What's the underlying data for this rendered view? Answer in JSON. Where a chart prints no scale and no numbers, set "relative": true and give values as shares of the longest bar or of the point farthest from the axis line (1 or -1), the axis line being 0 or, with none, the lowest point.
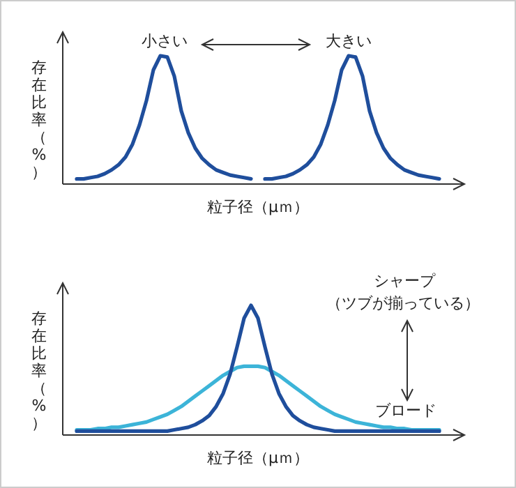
{
  "chart_data": [
    {
      "type": "line",
      "relative": true,
      "xlabel": "粒子径（μｍ）",
      "ylabel": "存在比率（%）",
      "annotations": [
        "小さい",
        "大きい"
      ],
      "categories": [
        null,
        null,
        null,
        null,
        null,
        null,
        null,
        null,
        null,
        null,
        null,
        null,
        null,
        null,
        null,
        null,
        null,
        null,
        null,
        null,
        null,
        null,
        null,
        null,
        null,
        null,
        null,
        null,
        null,
        null,
        null,
        null,
        null,
        null,
        null,
        null,
        null,
        null,
        null,
        null,
        null,
        null,
        null,
        null,
        null,
        null,
        null,
        null,
        null,
        null,
        null,
        null,
        null
      ],
      "series": [
        {
          "color": "#1f4e9c",
          "values": [
            0.04,
            0.04,
            0.05,
            0.06,
            0.08,
            0.11,
            0.15,
            0.21,
            0.31,
            0.46,
            0.65,
            0.89,
            1.0,
            0.99,
            0.84,
            0.57,
            0.4,
            0.28,
            0.2,
            0.15,
            0.11,
            0.09,
            0.07,
            0.06,
            0.05,
            0.04,
            null,
            null,
            null,
            null,
            null,
            null,
            null,
            null,
            null,
            null,
            null,
            null,
            null,
            null,
            null,
            null,
            null,
            null,
            null,
            null,
            null,
            null,
            null,
            null,
            null,
            null,
            null
          ]
        },
        {
          "color": "#1f4e9c",
          "values": [
            null,
            null,
            null,
            null,
            null,
            null,
            null,
            null,
            null,
            null,
            null,
            null,
            null,
            null,
            null,
            null,
            null,
            null,
            null,
            null,
            null,
            null,
            null,
            null,
            null,
            null,
            null,
            0.04,
            0.04,
            0.05,
            0.06,
            0.08,
            0.11,
            0.15,
            0.21,
            0.31,
            0.46,
            0.65,
            0.89,
            1.0,
            0.99,
            0.84,
            0.57,
            0.4,
            0.28,
            0.2,
            0.15,
            0.11,
            0.09,
            0.07,
            0.06,
            0.05,
            0.04
          ]
        }
      ]
    },
    {
      "type": "line",
      "relative": true,
      "xlabel": "粒子径（μｍ）",
      "ylabel": "存在比率（%）",
      "annotations": [
        "シャープ",
        "（ツブが揃っている）",
        "ブロード"
      ],
      "categories": [
        null,
        null,
        null,
        null,
        null,
        null,
        null,
        null,
        null,
        null,
        null,
        null,
        null,
        null,
        null,
        null,
        null,
        null,
        null,
        null,
        null,
        null,
        null,
        null,
        null,
        null,
        null,
        null,
        null,
        null,
        null,
        null,
        null,
        null,
        null,
        null,
        null,
        null,
        null,
        null,
        null,
        null,
        null,
        null,
        null,
        null,
        null,
        null,
        null,
        null,
        null,
        null,
        null
      ],
      "series": [
        {
          "color": "#3cb4d8",
          "values": [
            0.04,
            0.04,
            0.04,
            0.05,
            0.05,
            0.06,
            0.06,
            0.07,
            0.08,
            0.09,
            0.1,
            0.12,
            0.14,
            0.16,
            0.19,
            0.22,
            0.26,
            0.3,
            0.34,
            0.38,
            0.42,
            0.46,
            0.49,
            0.52,
            0.53,
            0.53,
            0.53,
            0.52,
            0.49,
            0.46,
            0.42,
            0.38,
            0.34,
            0.3,
            0.26,
            0.22,
            0.19,
            0.16,
            0.14,
            0.12,
            0.1,
            0.09,
            0.08,
            0.07,
            0.06,
            0.06,
            0.05,
            0.05,
            0.04,
            0.04,
            0.04,
            0.04,
            0.04
          ]
        },
        {
          "color": "#1f4e9c",
          "values": [
            0.03,
            0.03,
            0.03,
            0.03,
            0.03,
            0.03,
            0.03,
            0.03,
            0.03,
            0.03,
            0.03,
            0.03,
            0.03,
            0.03,
            0.04,
            0.05,
            0.06,
            0.08,
            0.11,
            0.15,
            0.22,
            0.32,
            0.47,
            0.68,
            0.9,
            1.0,
            0.9,
            0.68,
            0.47,
            0.32,
            0.22,
            0.15,
            0.11,
            0.08,
            0.06,
            0.05,
            0.04,
            0.03,
            0.03,
            0.03,
            0.03,
            0.03,
            0.03,
            0.03,
            0.03,
            0.03,
            0.03,
            0.03,
            0.03,
            0.03,
            0.03,
            0.03,
            0.03
          ]
        }
      ]
    }
  ]
}
